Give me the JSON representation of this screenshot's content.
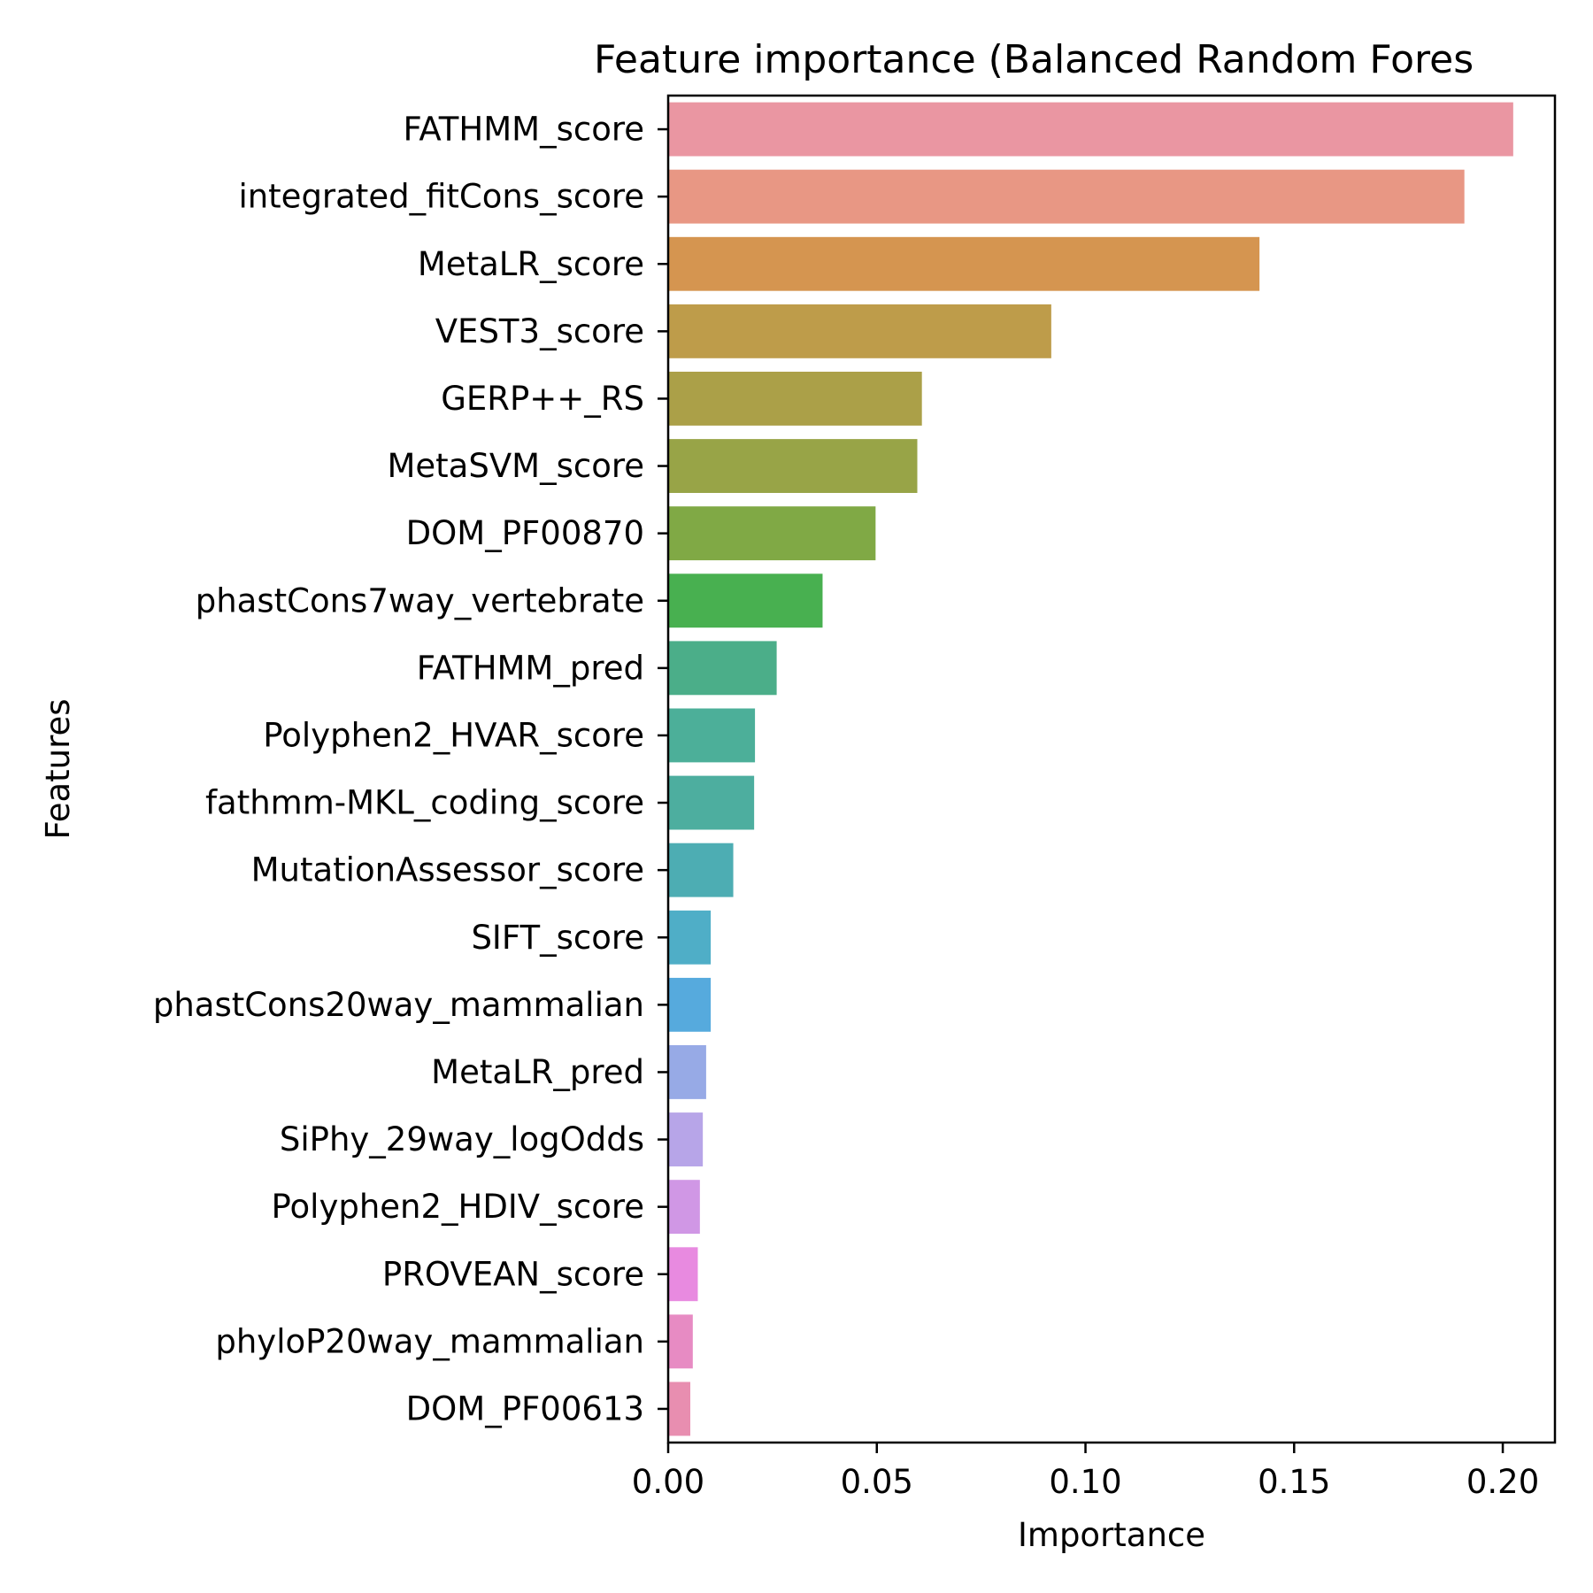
{
  "chart_data": {
    "type": "bar",
    "orientation": "horizontal",
    "title": "Feature importance (Balanced Random Fores",
    "xlabel": "Importance",
    "ylabel": "Features",
    "xlim": [
      0,
      0.2125
    ],
    "xticks": [
      "0.00",
      "0.05",
      "0.10",
      "0.15",
      "0.20"
    ],
    "grid": false,
    "legend": "none",
    "categories": [
      "FATHMM_score",
      "integrated_fitCons_score",
      "MetaLR_score",
      "VEST3_score",
      "GERP++_RS",
      "MetaSVM_score",
      "DOM_PF00870",
      "phastCons7way_vertebrate",
      "FATHMM_pred",
      "Polyphen2_HVAR_score",
      "fathmm-MKL_coding_score",
      "MutationAssessor_score",
      "SIFT_score",
      "phastCons20way_mammalian",
      "MetaLR_pred",
      "SiPhy_29way_logOdds",
      "Polyphen2_HDIV_score",
      "PROVEAN_score",
      "phyloP20way_mammalian",
      "DOM_PF00613"
    ],
    "values": [
      0.2025,
      0.1908,
      0.1417,
      0.0918,
      0.0608,
      0.0597,
      0.0497,
      0.037,
      0.026,
      0.0208,
      0.0206,
      0.0156,
      0.0102,
      0.0102,
      0.0091,
      0.0083,
      0.0076,
      0.0071,
      0.0059,
      0.0053
    ],
    "colors": [
      "#ea96a2",
      "#e89784",
      "#d59550",
      "#be9c4a",
      "#aba048",
      "#98a447",
      "#80a945",
      "#48b050",
      "#4bae89",
      "#4caf99",
      "#4dae9f",
      "#4dadb3",
      "#4faec7",
      "#56aadd",
      "#97aae6",
      "#b7a5e8",
      "#d097e5",
      "#e88ae0",
      "#e78bc3",
      "#e88eb0"
    ]
  }
}
